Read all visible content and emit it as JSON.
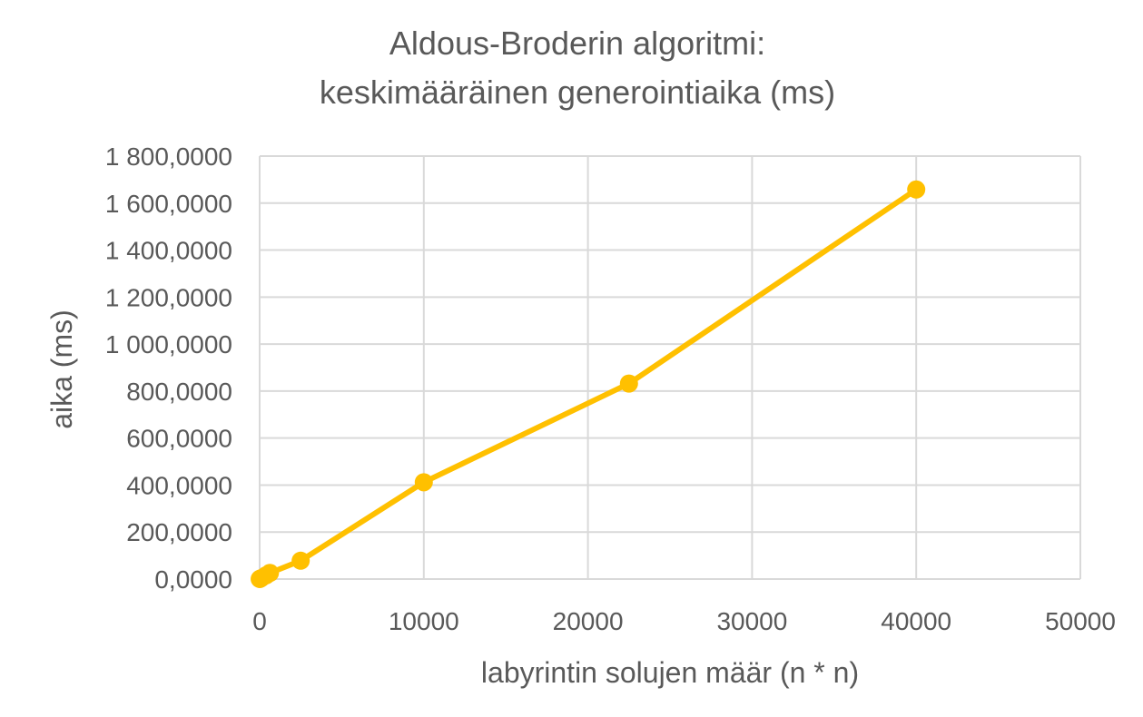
{
  "chart_data": {
    "type": "scatter",
    "title": [
      "Aldous-Broderin algoritmi:",
      "keskimääräinen generointiaika (ms)"
    ],
    "xlabel": "labyrintin solujen määr (n * n)",
    "ylabel": "aika (ms)",
    "xlim": [
      0,
      50000
    ],
    "ylim": [
      0,
      1800
    ],
    "x_ticks": [
      0,
      10000,
      20000,
      30000,
      40000,
      50000
    ],
    "x_tick_labels": [
      "0",
      "10000",
      "20000",
      "30000",
      "40000",
      "50000"
    ],
    "y_ticks": [
      0,
      200,
      400,
      600,
      800,
      1000,
      1200,
      1400,
      1600,
      1800
    ],
    "y_tick_labels": [
      "0,0000",
      "200,0000",
      "400,0000",
      "600,0000",
      "800,0000",
      "1 000,0000",
      "1 200,0000",
      "1 400,0000",
      "1 600,0000",
      "1 800,0000"
    ],
    "grid": true,
    "lines": true,
    "series": [
      {
        "color": "#FFC000",
        "x": [
          4,
          25,
          100,
          400,
          625,
          2500,
          10000,
          22500,
          40000
        ],
        "y": [
          0.2,
          1,
          4,
          16,
          26,
          78,
          412,
          832,
          1658
        ]
      }
    ]
  }
}
